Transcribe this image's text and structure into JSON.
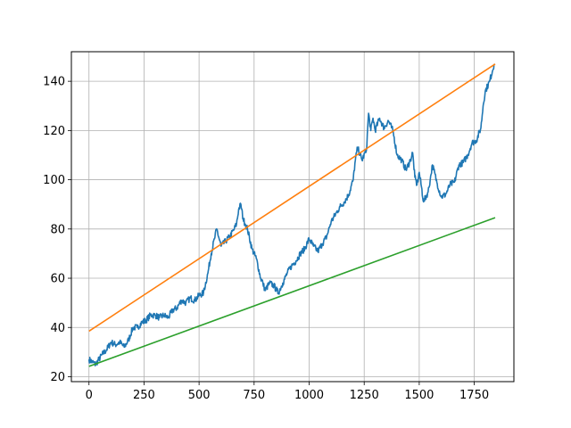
{
  "chart_data": {
    "type": "line",
    "title": "",
    "xlabel": "",
    "ylabel": "",
    "xlim": [
      -80,
      1930
    ],
    "ylim": [
      18,
      152
    ],
    "xticks": [
      0,
      250,
      500,
      750,
      1000,
      1250,
      1500,
      1750
    ],
    "yticks": [
      20,
      40,
      60,
      80,
      100,
      120,
      140
    ],
    "grid": true,
    "series": [
      {
        "color": "#1f77b4",
        "style": "noisy",
        "x": [
          0,
          15,
          30,
          45,
          60,
          80,
          100,
          120,
          140,
          160,
          180,
          200,
          220,
          240,
          260,
          280,
          300,
          320,
          340,
          360,
          380,
          400,
          420,
          440,
          460,
          480,
          500,
          520,
          540,
          555,
          570,
          580,
          600,
          620,
          640,
          660,
          670,
          680,
          690,
          700,
          710,
          720,
          740,
          760,
          780,
          790,
          800,
          820,
          840,
          860,
          880,
          900,
          920,
          940,
          960,
          980,
          1000,
          1020,
          1040,
          1060,
          1080,
          1100,
          1120,
          1140,
          1160,
          1180,
          1200,
          1210,
          1220,
          1240,
          1260,
          1270,
          1280,
          1290,
          1300,
          1320,
          1340,
          1360,
          1380,
          1400,
          1420,
          1440,
          1460,
          1470,
          1480,
          1490,
          1500,
          1520,
          1540,
          1550,
          1560,
          1580,
          1600,
          1620,
          1640,
          1660,
          1680,
          1700,
          1720,
          1740,
          1760,
          1780,
          1790,
          1800,
          1820,
          1840
        ],
        "y": [
          27,
          26,
          25,
          27,
          29,
          31,
          34,
          33,
          34,
          32,
          35,
          40,
          40,
          42,
          43,
          45,
          45,
          44,
          45,
          44,
          47,
          48,
          51,
          50,
          52,
          51,
          53,
          54,
          62,
          70,
          76,
          80,
          73,
          75,
          77,
          80,
          82,
          88,
          90,
          84,
          82,
          80,
          72,
          68,
          60,
          58,
          55,
          58,
          57,
          54,
          58,
          62,
          65,
          67,
          70,
          72,
          76,
          73,
          71,
          74,
          77,
          83,
          86,
          89,
          91,
          94,
          100,
          108,
          113,
          108,
          112,
          127,
          120,
          125,
          120,
          125,
          121,
          124,
          120,
          110,
          108,
          104,
          108,
          111,
          101,
          98,
          103,
          91,
          95,
          100,
          106,
          99,
          93,
          94,
          98,
          99,
          106,
          107,
          110,
          115,
          116,
          121,
          130,
          136,
          140,
          147
        ]
      },
      {
        "color": "#ff7f0e",
        "style": "straight",
        "x": [
          0,
          1845
        ],
        "y": [
          38.5,
          147
        ]
      },
      {
        "color": "#2ca02c",
        "style": "straight",
        "x": [
          0,
          1845
        ],
        "y": [
          24.2,
          84.6
        ]
      }
    ]
  }
}
